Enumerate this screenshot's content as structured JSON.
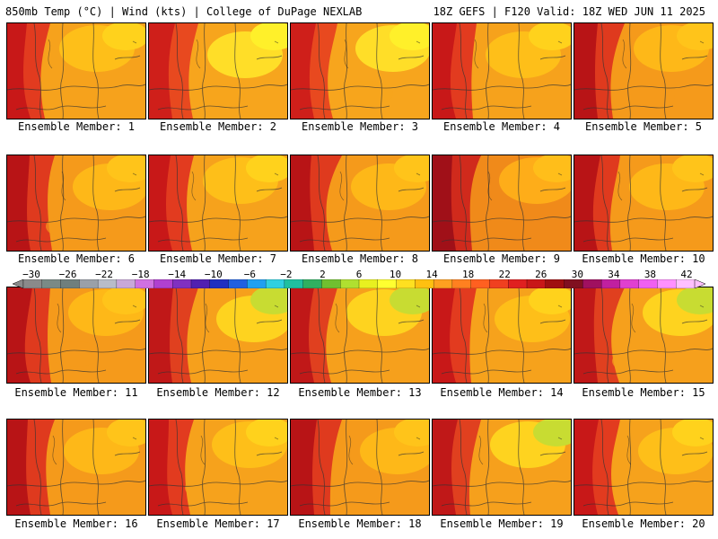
{
  "header": {
    "left": "850mb Temp (°C) | Wind (kts) | College of DuPage NEXLAB",
    "right": "18Z GEFS | F120 Valid: 18Z WED JUN 11 2025"
  },
  "members": [
    {
      "label": "Ensemble Member: 1",
      "style": "hot-west"
    },
    {
      "label": "Ensemble Member: 2",
      "style": "cool-ne"
    },
    {
      "label": "Ensemble Member: 3",
      "style": "cool-ne"
    },
    {
      "label": "Ensemble Member: 4",
      "style": "hot-west"
    },
    {
      "label": "Ensemble Member: 5",
      "style": "warm"
    },
    {
      "label": "Ensemble Member: 6",
      "style": "warm"
    },
    {
      "label": "Ensemble Member: 7",
      "style": "hot-west"
    },
    {
      "label": "Ensemble Member: 8",
      "style": "warm"
    },
    {
      "label": "Ensemble Member: 9",
      "style": "very-hot"
    },
    {
      "label": "Ensemble Member: 10",
      "style": "warm"
    },
    {
      "label": "Ensemble Member: 11",
      "style": "warm"
    },
    {
      "label": "Ensemble Member: 12",
      "style": "green-ne"
    },
    {
      "label": "Ensemble Member: 13",
      "style": "green-ne"
    },
    {
      "label": "Ensemble Member: 14",
      "style": "hot-west"
    },
    {
      "label": "Ensemble Member: 15",
      "style": "green-ne"
    },
    {
      "label": "Ensemble Member: 16",
      "style": "warm"
    },
    {
      "label": "Ensemble Member: 17",
      "style": "hot-west"
    },
    {
      "label": "Ensemble Member: 18",
      "style": "warm"
    },
    {
      "label": "Ensemble Member: 19",
      "style": "green-ne"
    },
    {
      "label": "Ensemble Member: 20",
      "style": "hot-west"
    }
  ],
  "colorbar": {
    "tick_labels": [
      "−30",
      "−26",
      "−22",
      "−18",
      "−14",
      "−10",
      "−6",
      "−2",
      "2",
      "6",
      "10",
      "14",
      "18",
      "22",
      "26",
      "30",
      "34",
      "38",
      "42"
    ],
    "colors": [
      "#8a8a8a",
      "#7a8a86",
      "#6f7f7d",
      "#9aa0a8",
      "#b8bcc8",
      "#c8a8d8",
      "#d070e0",
      "#b040d0",
      "#8030c0",
      "#5020b0",
      "#2030c0",
      "#2060e0",
      "#20a0f0",
      "#30d0e0",
      "#20c0a0",
      "#30b060",
      "#70c030",
      "#b0e030",
      "#e8f020",
      "#ffff30",
      "#ffe020",
      "#ffc010",
      "#ffa020",
      "#ff8020",
      "#ff6020",
      "#f04020",
      "#e02020",
      "#c81818",
      "#a01010",
      "#801020",
      "#a01060",
      "#c020a0",
      "#e040d0",
      "#f060f0",
      "#ff90ff",
      "#ffc0ff"
    ]
  }
}
